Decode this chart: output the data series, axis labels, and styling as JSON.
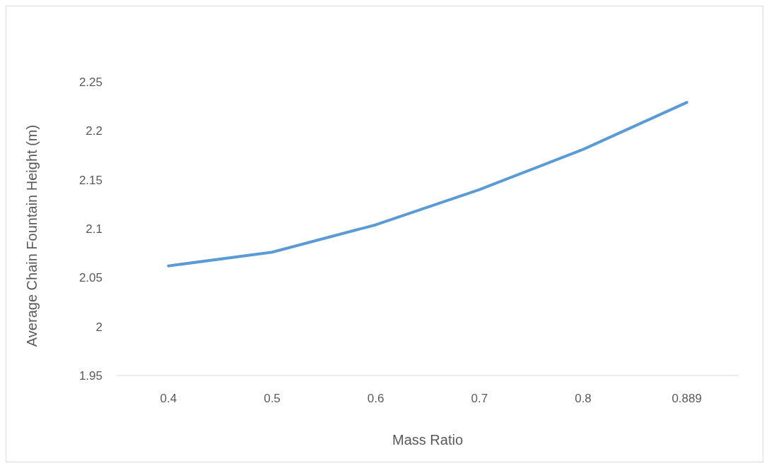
{
  "chart_data": {
    "type": "line",
    "xlabel": "Mass Ratio",
    "ylabel": "Average Chain Fountain Height (m)",
    "categories": [
      "0.4",
      "0.5",
      "0.6",
      "0.7",
      "0.8",
      "0.889"
    ],
    "series": [
      {
        "color": "#5b9bd5",
        "values": [
          2.062,
          2.076,
          2.104,
          2.14,
          2.181,
          2.229
        ]
      }
    ],
    "ylim": [
      1.95,
      2.25
    ],
    "yticks": [
      1.95,
      2,
      2.05,
      2.1,
      2.15,
      2.2,
      2.25
    ],
    "grid": false,
    "marker": "none",
    "line_style": "solid"
  }
}
